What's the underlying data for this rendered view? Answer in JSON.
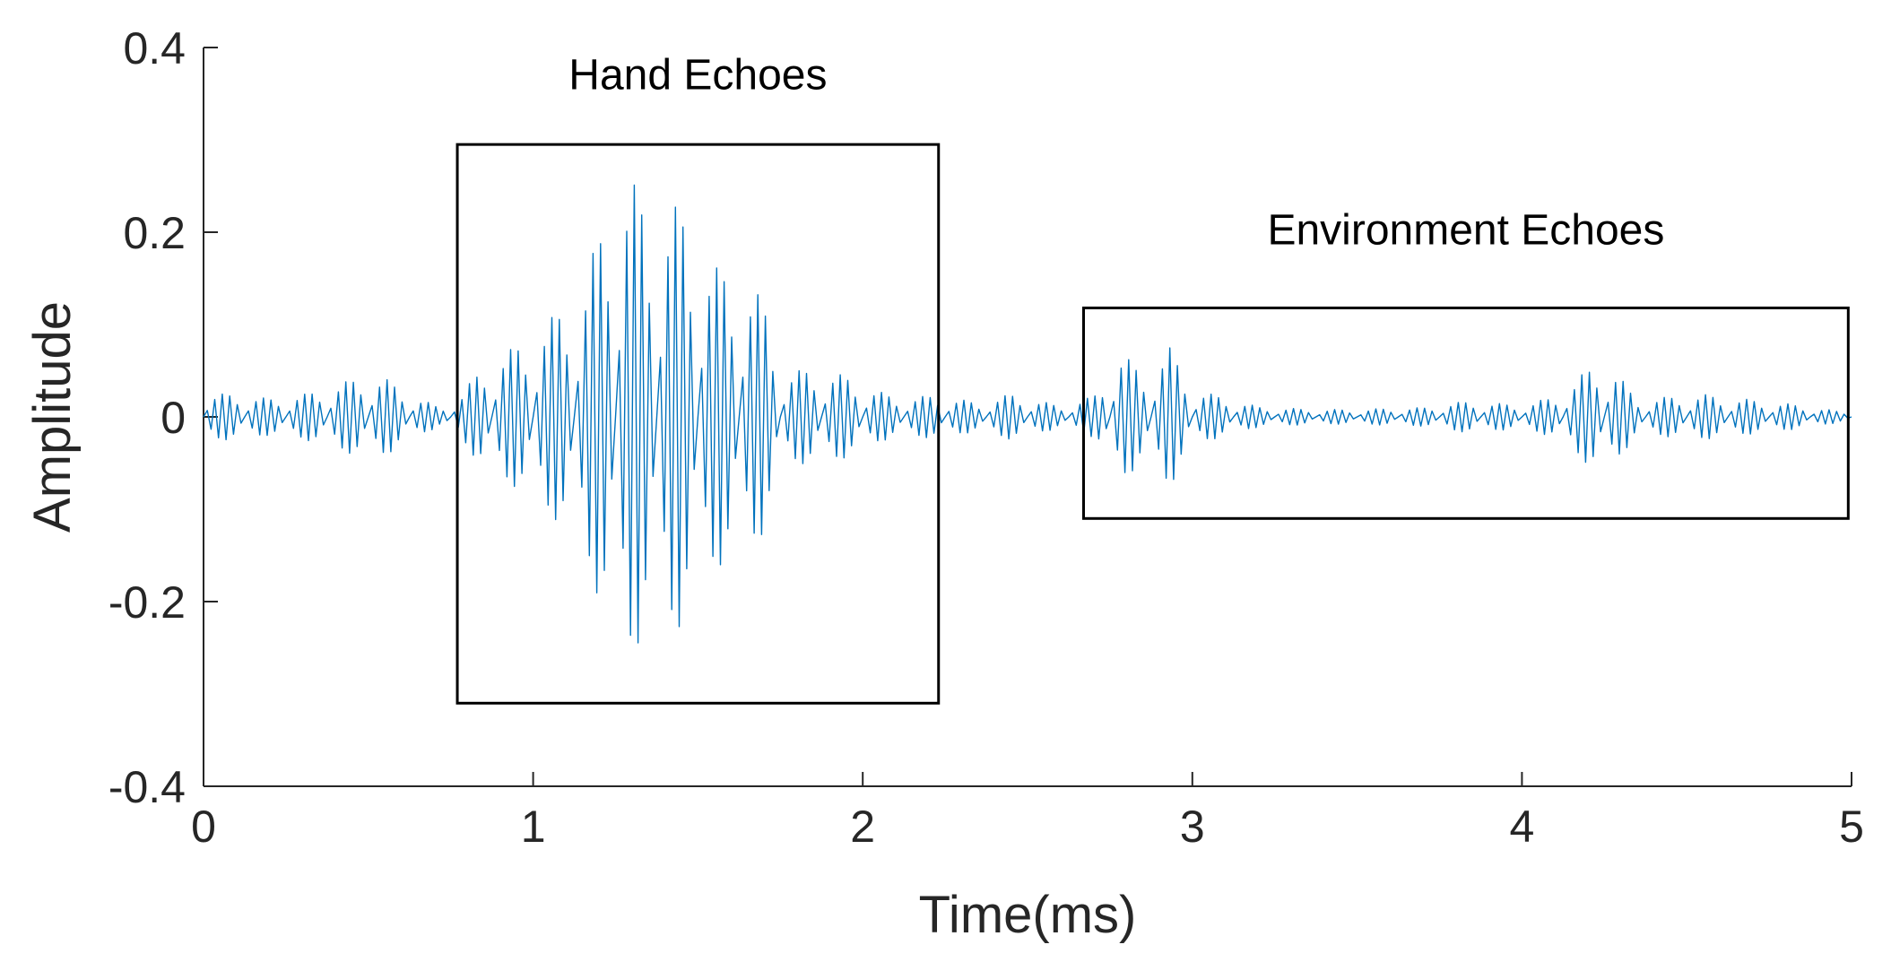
{
  "chart_data": {
    "type": "line",
    "title": "",
    "xlabel": "Time(ms)",
    "ylabel": "Amplitude",
    "xlim": [
      0,
      5
    ],
    "ylim": [
      -0.4,
      0.4
    ],
    "grid": false,
    "x_ticks": [
      0,
      1,
      2,
      3,
      4,
      5
    ],
    "x_tick_labels": [
      "0",
      "1",
      "2",
      "3",
      "4",
      "5"
    ],
    "y_ticks": [
      -0.4,
      -0.2,
      0,
      0.2,
      0.4
    ],
    "y_tick_labels": [
      "-0.4",
      "-0.2",
      "0",
      "0.2",
      "0.4"
    ],
    "series_color": "#0072BD",
    "signal": {
      "x_start": 0,
      "x_end": 5,
      "samples": 440,
      "carrier_cycles_per_ms": 40,
      "envelope": [
        {
          "x": 0.0,
          "amp": 0.025
        },
        {
          "x": 0.1,
          "amp": 0.025
        },
        {
          "x": 0.2,
          "amp": 0.022
        },
        {
          "x": 0.3,
          "amp": 0.03
        },
        {
          "x": 0.4,
          "amp": 0.045
        },
        {
          "x": 0.48,
          "amp": 0.055
        },
        {
          "x": 0.55,
          "amp": 0.05
        },
        {
          "x": 0.62,
          "amp": 0.03
        },
        {
          "x": 0.72,
          "amp": 0.012
        },
        {
          "x": 0.78,
          "amp": 0.03
        },
        {
          "x": 0.86,
          "amp": 0.09
        },
        {
          "x": 0.95,
          "amp": 0.12
        },
        {
          "x": 1.05,
          "amp": 0.15
        },
        {
          "x": 1.15,
          "amp": 0.17
        },
        {
          "x": 1.22,
          "amp": 0.25
        },
        {
          "x": 1.28,
          "amp": 0.29
        },
        {
          "x": 1.35,
          "amp": 0.25
        },
        {
          "x": 1.45,
          "amp": 0.27
        },
        {
          "x": 1.55,
          "amp": 0.2
        },
        {
          "x": 1.62,
          "amp": 0.19
        },
        {
          "x": 1.7,
          "amp": 0.14
        },
        {
          "x": 1.76,
          "amp": 0.05
        },
        {
          "x": 1.85,
          "amp": 0.055
        },
        {
          "x": 1.95,
          "amp": 0.05
        },
        {
          "x": 2.1,
          "amp": 0.03
        },
        {
          "x": 2.22,
          "amp": 0.035
        },
        {
          "x": 2.35,
          "amp": 0.02
        },
        {
          "x": 2.45,
          "amp": 0.03
        },
        {
          "x": 2.6,
          "amp": 0.015
        },
        {
          "x": 2.7,
          "amp": 0.03
        },
        {
          "x": 2.78,
          "amp": 0.095
        },
        {
          "x": 2.85,
          "amp": 0.06
        },
        {
          "x": 2.93,
          "amp": 0.085
        },
        {
          "x": 3.0,
          "amp": 0.03
        },
        {
          "x": 3.2,
          "amp": 0.012
        },
        {
          "x": 3.5,
          "amp": 0.01
        },
        {
          "x": 3.7,
          "amp": 0.012
        },
        {
          "x": 3.85,
          "amp": 0.025
        },
        {
          "x": 4.0,
          "amp": 0.02
        },
        {
          "x": 4.1,
          "amp": 0.03
        },
        {
          "x": 4.22,
          "amp": 0.065
        },
        {
          "x": 4.27,
          "amp": 0.06
        },
        {
          "x": 4.35,
          "amp": 0.02
        },
        {
          "x": 4.55,
          "amp": 0.03
        },
        {
          "x": 4.75,
          "amp": 0.018
        },
        {
          "x": 5.0,
          "amp": 0.005
        }
      ]
    },
    "annotations": [
      {
        "label": "Hand Echoes",
        "x0": 0.77,
        "x1": 2.23,
        "y0": -0.31,
        "y1": 0.295,
        "label_x": 1.5,
        "label_y": 0.355
      },
      {
        "label": "Environment Echoes",
        "x0": 2.67,
        "x1": 4.99,
        "y0": -0.11,
        "y1": 0.118,
        "label_x": 3.83,
        "label_y": 0.187
      }
    ]
  }
}
